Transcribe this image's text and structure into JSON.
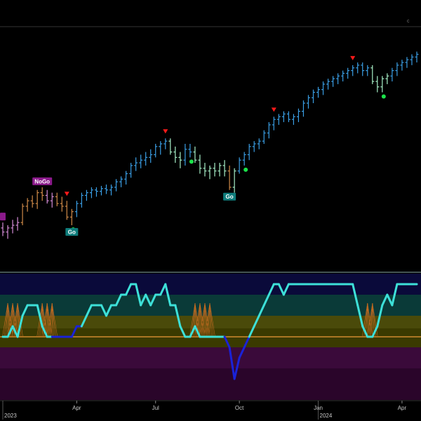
{
  "chart_data": [
    {
      "type": "ohlc",
      "panel": "price",
      "colors": {
        "go_strong": "#3a9ee4",
        "go_weak": "#a8f0c8",
        "nogo_weak": "#d08a48",
        "nogo_strong": "#d68cd8",
        "up_marker": "#ff1a1a",
        "dot_marker": "#1be34a",
        "go_tag": "#0e7c7b",
        "nogo_tag": "#8b1a8b"
      },
      "corner_text": "c",
      "bars": [
        {
          "t": 0,
          "o": 0.18,
          "h": 0.22,
          "l": 0.12,
          "c": 0.15,
          "s": "nogo_strong"
        },
        {
          "t": 1,
          "o": 0.15,
          "h": 0.2,
          "l": 0.1,
          "c": 0.18,
          "s": "nogo_strong"
        },
        {
          "t": 2,
          "o": 0.18,
          "h": 0.24,
          "l": 0.14,
          "c": 0.2,
          "s": "nogo_strong"
        },
        {
          "t": 3,
          "o": 0.2,
          "h": 0.26,
          "l": 0.16,
          "c": 0.22,
          "s": "nogo_strong"
        },
        {
          "t": 4,
          "o": 0.22,
          "h": 0.36,
          "l": 0.2,
          "c": 0.34,
          "s": "nogo_weak"
        },
        {
          "t": 5,
          "o": 0.34,
          "h": 0.4,
          "l": 0.3,
          "c": 0.38,
          "s": "nogo_weak"
        },
        {
          "t": 6,
          "o": 0.38,
          "h": 0.42,
          "l": 0.33,
          "c": 0.36,
          "s": "nogo_weak"
        },
        {
          "t": 7,
          "o": 0.36,
          "h": 0.46,
          "l": 0.32,
          "c": 0.44,
          "s": "nogo_weak"
        },
        {
          "t": 8,
          "o": 0.44,
          "h": 0.48,
          "l": 0.38,
          "c": 0.42,
          "s": "nogo_weak"
        },
        {
          "t": 9,
          "o": 0.42,
          "h": 0.46,
          "l": 0.36,
          "c": 0.38,
          "s": "nogo_strong"
        },
        {
          "t": 10,
          "o": 0.38,
          "h": 0.44,
          "l": 0.33,
          "c": 0.41,
          "s": "nogo_strong"
        },
        {
          "t": 11,
          "o": 0.41,
          "h": 0.44,
          "l": 0.34,
          "c": 0.36,
          "s": "nogo_weak"
        },
        {
          "t": 12,
          "o": 0.36,
          "h": 0.41,
          "l": 0.3,
          "c": 0.34,
          "s": "nogo_weak"
        },
        {
          "t": 13,
          "o": 0.34,
          "h": 0.38,
          "l": 0.24,
          "c": 0.26,
          "s": "nogo_weak"
        },
        {
          "t": 14,
          "o": 0.26,
          "h": 0.32,
          "l": 0.2,
          "c": 0.3,
          "s": "nogo_weak"
        },
        {
          "t": 15,
          "o": 0.3,
          "h": 0.38,
          "l": 0.26,
          "c": 0.36,
          "s": "go_strong"
        },
        {
          "t": 16,
          "o": 0.36,
          "h": 0.44,
          "l": 0.33,
          "c": 0.42,
          "s": "go_strong"
        },
        {
          "t": 17,
          "o": 0.42,
          "h": 0.46,
          "l": 0.38,
          "c": 0.44,
          "s": "go_strong"
        },
        {
          "t": 18,
          "o": 0.44,
          "h": 0.48,
          "l": 0.4,
          "c": 0.46,
          "s": "go_strong"
        },
        {
          "t": 19,
          "o": 0.46,
          "h": 0.48,
          "l": 0.41,
          "c": 0.45,
          "s": "go_strong"
        },
        {
          "t": 20,
          "o": 0.45,
          "h": 0.49,
          "l": 0.42,
          "c": 0.47,
          "s": "go_strong"
        },
        {
          "t": 21,
          "o": 0.47,
          "h": 0.5,
          "l": 0.43,
          "c": 0.46,
          "s": "go_strong"
        },
        {
          "t": 22,
          "o": 0.46,
          "h": 0.5,
          "l": 0.42,
          "c": 0.48,
          "s": "go_strong"
        },
        {
          "t": 23,
          "o": 0.48,
          "h": 0.54,
          "l": 0.45,
          "c": 0.52,
          "s": "go_strong"
        },
        {
          "t": 24,
          "o": 0.52,
          "h": 0.56,
          "l": 0.48,
          "c": 0.54,
          "s": "go_strong"
        },
        {
          "t": 25,
          "o": 0.54,
          "h": 0.6,
          "l": 0.5,
          "c": 0.58,
          "s": "go_strong"
        },
        {
          "t": 26,
          "o": 0.58,
          "h": 0.66,
          "l": 0.55,
          "c": 0.64,
          "s": "go_strong"
        },
        {
          "t": 27,
          "o": 0.64,
          "h": 0.7,
          "l": 0.6,
          "c": 0.66,
          "s": "go_strong"
        },
        {
          "t": 28,
          "o": 0.66,
          "h": 0.72,
          "l": 0.62,
          "c": 0.68,
          "s": "go_strong"
        },
        {
          "t": 29,
          "o": 0.68,
          "h": 0.74,
          "l": 0.64,
          "c": 0.7,
          "s": "go_strong"
        },
        {
          "t": 30,
          "o": 0.7,
          "h": 0.76,
          "l": 0.66,
          "c": 0.72,
          "s": "go_strong"
        },
        {
          "t": 31,
          "o": 0.72,
          "h": 0.8,
          "l": 0.7,
          "c": 0.78,
          "s": "go_strong"
        },
        {
          "t": 32,
          "o": 0.78,
          "h": 0.82,
          "l": 0.72,
          "c": 0.8,
          "s": "go_strong"
        },
        {
          "t": 33,
          "o": 0.8,
          "h": 0.84,
          "l": 0.76,
          "c": 0.82,
          "s": "go_strong"
        },
        {
          "t": 34,
          "o": 0.82,
          "h": 0.84,
          "l": 0.72,
          "c": 0.74,
          "s": "go_weak"
        },
        {
          "t": 35,
          "o": 0.74,
          "h": 0.78,
          "l": 0.66,
          "c": 0.7,
          "s": "go_weak"
        },
        {
          "t": 36,
          "o": 0.7,
          "h": 0.74,
          "l": 0.62,
          "c": 0.68,
          "s": "go_weak"
        },
        {
          "t": 37,
          "o": 0.68,
          "h": 0.8,
          "l": 0.64,
          "c": 0.76,
          "s": "go_strong"
        },
        {
          "t": 38,
          "o": 0.76,
          "h": 0.8,
          "l": 0.7,
          "c": 0.74,
          "s": "go_strong"
        },
        {
          "t": 39,
          "o": 0.74,
          "h": 0.78,
          "l": 0.66,
          "c": 0.68,
          "s": "go_weak"
        },
        {
          "t": 40,
          "o": 0.68,
          "h": 0.72,
          "l": 0.58,
          "c": 0.62,
          "s": "go_weak"
        },
        {
          "t": 41,
          "o": 0.62,
          "h": 0.66,
          "l": 0.56,
          "c": 0.6,
          "s": "go_weak"
        },
        {
          "t": 42,
          "o": 0.6,
          "h": 0.64,
          "l": 0.54,
          "c": 0.62,
          "s": "go_weak"
        },
        {
          "t": 43,
          "o": 0.62,
          "h": 0.66,
          "l": 0.56,
          "c": 0.6,
          "s": "go_weak"
        },
        {
          "t": 44,
          "o": 0.6,
          "h": 0.66,
          "l": 0.56,
          "c": 0.64,
          "s": "go_weak"
        },
        {
          "t": 45,
          "o": 0.64,
          "h": 0.68,
          "l": 0.56,
          "c": 0.6,
          "s": "go_weak"
        },
        {
          "t": 46,
          "o": 0.6,
          "h": 0.64,
          "l": 0.46,
          "c": 0.48,
          "s": "nogo_weak"
        },
        {
          "t": 47,
          "o": 0.48,
          "h": 0.62,
          "l": 0.44,
          "c": 0.6,
          "s": "go_weak"
        },
        {
          "t": 48,
          "o": 0.6,
          "h": 0.7,
          "l": 0.58,
          "c": 0.68,
          "s": "go_strong"
        },
        {
          "t": 49,
          "o": 0.68,
          "h": 0.74,
          "l": 0.64,
          "c": 0.72,
          "s": "go_strong"
        },
        {
          "t": 50,
          "o": 0.72,
          "h": 0.8,
          "l": 0.68,
          "c": 0.78,
          "s": "go_strong"
        },
        {
          "t": 51,
          "o": 0.78,
          "h": 0.82,
          "l": 0.74,
          "c": 0.8,
          "s": "go_strong"
        },
        {
          "t": 52,
          "o": 0.8,
          "h": 0.84,
          "l": 0.76,
          "c": 0.82,
          "s": "go_strong"
        },
        {
          "t": 53,
          "o": 0.82,
          "h": 0.9,
          "l": 0.8,
          "c": 0.88,
          "s": "go_strong"
        },
        {
          "t": 54,
          "o": 0.88,
          "h": 0.96,
          "l": 0.84,
          "c": 0.94,
          "s": "go_strong"
        },
        {
          "t": 55,
          "o": 0.94,
          "h": 1.0,
          "l": 0.9,
          "c": 0.98,
          "s": "go_strong"
        },
        {
          "t": 56,
          "o": 0.98,
          "h": 1.02,
          "l": 0.94,
          "c": 1.0,
          "s": "go_strong"
        },
        {
          "t": 57,
          "o": 1.0,
          "h": 1.04,
          "l": 0.96,
          "c": 1.02,
          "s": "go_strong"
        },
        {
          "t": 58,
          "o": 1.02,
          "h": 1.04,
          "l": 0.96,
          "c": 0.98,
          "s": "go_strong"
        },
        {
          "t": 59,
          "o": 0.98,
          "h": 1.02,
          "l": 0.94,
          "c": 1.0,
          "s": "go_strong"
        },
        {
          "t": 60,
          "o": 1.0,
          "h": 1.06,
          "l": 0.96,
          "c": 1.04,
          "s": "go_strong"
        },
        {
          "t": 61,
          "o": 1.04,
          "h": 1.12,
          "l": 1.0,
          "c": 1.1,
          "s": "go_strong"
        },
        {
          "t": 62,
          "o": 1.1,
          "h": 1.16,
          "l": 1.06,
          "c": 1.14,
          "s": "go_strong"
        },
        {
          "t": 63,
          "o": 1.14,
          "h": 1.2,
          "l": 1.1,
          "c": 1.18,
          "s": "go_strong"
        },
        {
          "t": 64,
          "o": 1.18,
          "h": 1.22,
          "l": 1.14,
          "c": 1.2,
          "s": "go_strong"
        },
        {
          "t": 65,
          "o": 1.2,
          "h": 1.26,
          "l": 1.16,
          "c": 1.24,
          "s": "go_strong"
        },
        {
          "t": 66,
          "o": 1.24,
          "h": 1.28,
          "l": 1.2,
          "c": 1.26,
          "s": "go_strong"
        },
        {
          "t": 67,
          "o": 1.26,
          "h": 1.3,
          "l": 1.22,
          "c": 1.28,
          "s": "go_strong"
        },
        {
          "t": 68,
          "o": 1.28,
          "h": 1.32,
          "l": 1.24,
          "c": 1.3,
          "s": "go_strong"
        },
        {
          "t": 69,
          "o": 1.3,
          "h": 1.34,
          "l": 1.26,
          "c": 1.32,
          "s": "go_strong"
        },
        {
          "t": 70,
          "o": 1.32,
          "h": 1.36,
          "l": 1.28,
          "c": 1.34,
          "s": "go_strong"
        },
        {
          "t": 71,
          "o": 1.34,
          "h": 1.38,
          "l": 1.3,
          "c": 1.36,
          "s": "go_strong"
        },
        {
          "t": 72,
          "o": 1.36,
          "h": 1.4,
          "l": 1.32,
          "c": 1.38,
          "s": "go_strong"
        },
        {
          "t": 73,
          "o": 1.38,
          "h": 1.4,
          "l": 1.3,
          "c": 1.34,
          "s": "go_strong"
        },
        {
          "t": 74,
          "o": 1.34,
          "h": 1.38,
          "l": 1.3,
          "c": 1.36,
          "s": "go_strong"
        },
        {
          "t": 75,
          "o": 1.36,
          "h": 1.38,
          "l": 1.24,
          "c": 1.26,
          "s": "go_weak"
        },
        {
          "t": 76,
          "o": 1.26,
          "h": 1.3,
          "l": 1.18,
          "c": 1.22,
          "s": "go_weak"
        },
        {
          "t": 77,
          "o": 1.22,
          "h": 1.3,
          "l": 1.18,
          "c": 1.28,
          "s": "go_weak"
        },
        {
          "t": 78,
          "o": 1.28,
          "h": 1.32,
          "l": 1.24,
          "c": 1.3,
          "s": "go_weak"
        },
        {
          "t": 79,
          "o": 1.3,
          "h": 1.36,
          "l": 1.26,
          "c": 1.34,
          "s": "go_strong"
        },
        {
          "t": 80,
          "o": 1.34,
          "h": 1.4,
          "l": 1.3,
          "c": 1.38,
          "s": "go_strong"
        },
        {
          "t": 81,
          "o": 1.38,
          "h": 1.42,
          "l": 1.34,
          "c": 1.4,
          "s": "go_strong"
        },
        {
          "t": 82,
          "o": 1.4,
          "h": 1.44,
          "l": 1.36,
          "c": 1.42,
          "s": "go_strong"
        },
        {
          "t": 83,
          "o": 1.42,
          "h": 1.46,
          "l": 1.38,
          "c": 1.44,
          "s": "go_strong"
        },
        {
          "t": 84,
          "o": 1.44,
          "h": 1.48,
          "l": 1.4,
          "c": 1.46,
          "s": "go_strong"
        }
      ],
      "down_markers_above_bar": [
        13,
        33,
        55,
        71
      ],
      "dots_below_bar": [
        14,
        38,
        49,
        77
      ],
      "signal_tags": [
        {
          "bar": 14,
          "label": "Go",
          "kind": "go_tag",
          "position": "below"
        },
        {
          "bar": 46,
          "label": "Go",
          "kind": "go_tag",
          "position": "below"
        },
        {
          "bar": 8,
          "label": "NoGo",
          "kind": "nogo_tag",
          "position": "above"
        },
        {
          "bar": 0,
          "label": "",
          "kind": "nogo_tag",
          "position": "above"
        }
      ]
    },
    {
      "type": "line",
      "panel": "oscillator",
      "ylim": [
        -6,
        6
      ],
      "zero_line": 0,
      "colors": {
        "line_go": "#3de0d8",
        "line_nogo": "#1a22d8",
        "zero": "#d08a30",
        "cone": "#c06a20",
        "band_top": "#0a0a3a",
        "band_teal": "#0a3a38",
        "band_olive": "#3a3a00",
        "band_olive_light": "#4a4a0a",
        "band_purple": "#3a0a3a",
        "band_purple_dark": "#2a052a"
      },
      "values": [
        0,
        0,
        1,
        0,
        2,
        3,
        3,
        3,
        1,
        0,
        0,
        0,
        0,
        0,
        0,
        1,
        1,
        2,
        3,
        3,
        3,
        2,
        3,
        3,
        4,
        4,
        5,
        5,
        3,
        4,
        3,
        4,
        4,
        5,
        3,
        3,
        1,
        0,
        0,
        1,
        0,
        0,
        0,
        0,
        0,
        0,
        -1,
        -4,
        -2,
        -1,
        0,
        1,
        2,
        3,
        4,
        5,
        5,
        4,
        5,
        5,
        5,
        5,
        5,
        5,
        5,
        5,
        5,
        5,
        5,
        5,
        5,
        5,
        3,
        1,
        0,
        0,
        1,
        3,
        4,
        3,
        5,
        5,
        5,
        5,
        5
      ],
      "nogo_ranges": [
        [
          11,
          15
        ],
        [
          27,
          28
        ],
        [
          46,
          49
        ],
        [
          55,
          56
        ]
      ],
      "cone_bars": [
        1,
        2,
        3,
        8,
        9,
        10,
        39,
        40,
        41,
        42,
        74,
        75
      ]
    }
  ],
  "axis": {
    "month_ticks": [
      {
        "bar": 15,
        "label": "Apr"
      },
      {
        "bar": 31,
        "label": "Jul"
      },
      {
        "bar": 48,
        "label": "Oct"
      },
      {
        "bar": 64,
        "label": "Jan"
      },
      {
        "bar": 81,
        "label": "Apr"
      }
    ],
    "year_labels": [
      {
        "bar": 0,
        "label": "2023"
      },
      {
        "bar": 64,
        "label": "2024"
      }
    ]
  }
}
